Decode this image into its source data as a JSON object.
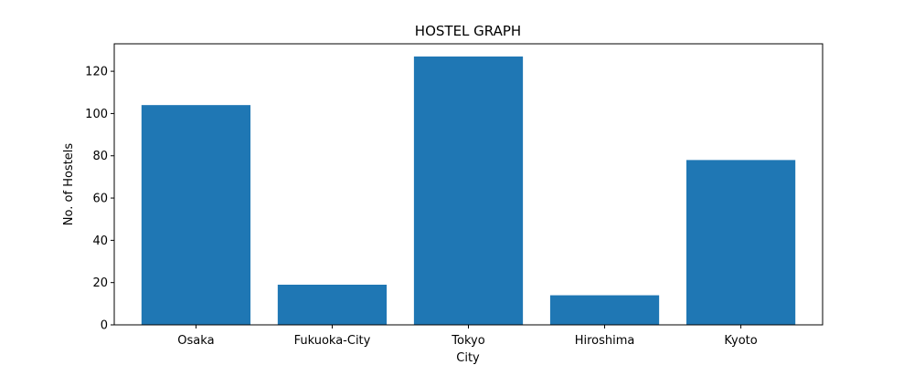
{
  "chart_data": {
    "type": "bar",
    "title": "HOSTEL GRAPH",
    "xlabel": "City",
    "ylabel": "No. of Hostels",
    "categories": [
      "Osaka",
      "Fukuoka-City",
      "Tokyo",
      "Hiroshima",
      "Kyoto"
    ],
    "values": [
      104,
      19,
      127,
      14,
      78
    ],
    "ylim": [
      0,
      133
    ],
    "yticks": [
      0,
      20,
      40,
      60,
      80,
      100,
      120
    ],
    "grid": false,
    "bar_color": "#1f77b4"
  }
}
